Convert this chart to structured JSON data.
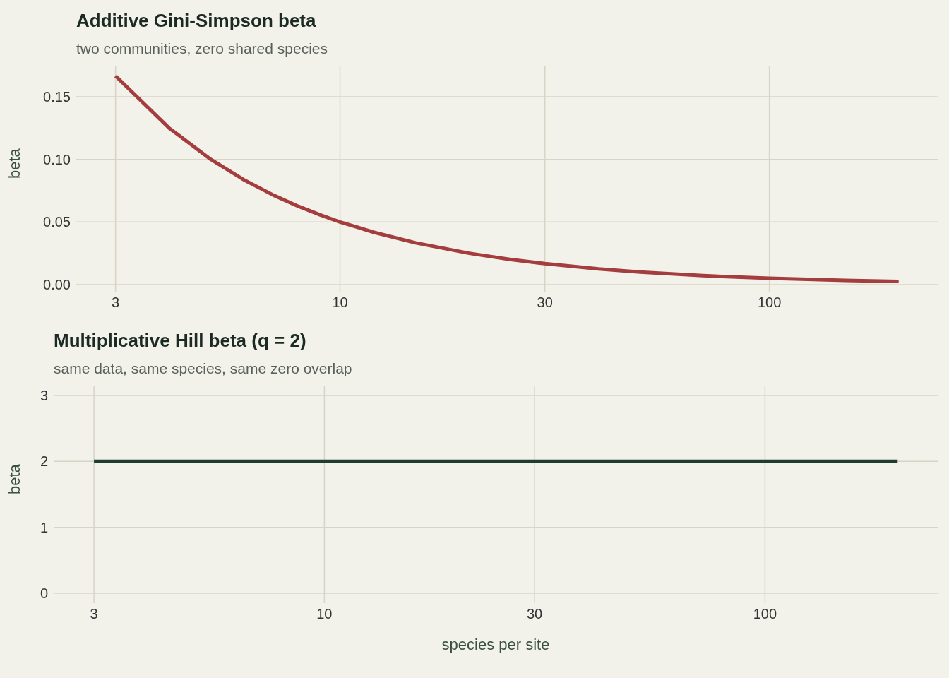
{
  "chart_data": [
    {
      "type": "line",
      "title": "Additive Gini-Simpson beta",
      "subtitle": "two communities, zero shared species",
      "ylabel": "beta",
      "x": [
        3,
        4,
        5,
        6,
        7,
        8,
        9,
        10,
        12,
        15,
        20,
        25,
        30,
        40,
        50,
        70,
        100,
        150,
        200
      ],
      "series": [
        {
          "color": "#a43d3e",
          "values": [
            0.1667,
            0.125,
            0.1,
            0.0833,
            0.0714,
            0.0625,
            0.0556,
            0.05,
            0.0417,
            0.0333,
            0.025,
            0.02,
            0.0167,
            0.0125,
            0.01,
            0.0071,
            0.005,
            0.0033,
            0.0025
          ]
        }
      ],
      "xlim": [
        2.43,
        246.6
      ],
      "xticks": [
        3,
        10,
        30,
        100
      ],
      "log": "x",
      "ylim": [
        -0.0057,
        0.1749
      ],
      "yticks": [
        {
          "value": 0,
          "label": "0.00"
        },
        0.05,
        {
          "value": 0.1,
          "label": "0.10"
        },
        0.15
      ],
      "grid": true
    },
    {
      "type": "line",
      "title": "Multiplicative Hill beta (q = 2)",
      "subtitle": "same data, same species, same zero overlap",
      "ylabel": "beta",
      "xlabel": "species per site",
      "x": [
        3,
        4,
        5,
        6,
        7,
        8,
        9,
        10,
        12,
        15,
        20,
        25,
        30,
        40,
        50,
        70,
        100,
        150,
        200
      ],
      "series": [
        {
          "color": "#1f3d2f",
          "values": [
            2,
            2,
            2,
            2,
            2,
            2,
            2,
            2,
            2,
            2,
            2,
            2,
            2,
            2,
            2,
            2,
            2,
            2,
            2
          ]
        }
      ],
      "xlim": [
        2.43,
        246.6
      ],
      "xticks": [
        3,
        10,
        30,
        100
      ],
      "log": "x",
      "ylim": [
        -0.15,
        3.15
      ],
      "yticks": [
        0,
        1,
        2,
        3
      ],
      "grid": true
    }
  ]
}
